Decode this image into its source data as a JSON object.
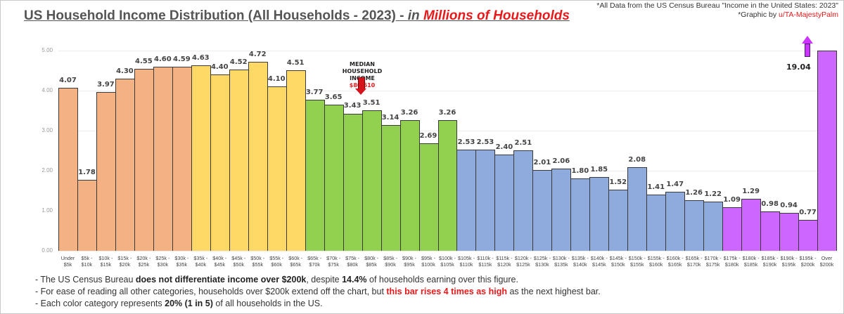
{
  "header": {
    "title_main": "US Household Income Distribution (All Households - 2023) - ",
    "title_in": "in ",
    "title_red": "Millions of Households",
    "credit_line1": "*All Data from the US Census Bureau \"Income in the United States: 2023\"",
    "credit_line2_prefix": "*Graphic by ",
    "credit_user": "u/TA-MajestyPalm"
  },
  "annotations": {
    "median_label_1": "MEDIAN",
    "median_label_2": "HOUSEHOLD",
    "median_label_3": "INCOME",
    "median_value": "$80,610",
    "over_200k_value": "19.04"
  },
  "notes": {
    "line1_a": "- The US Census Bureau ",
    "line1_b": "does not differentiate income over $200k",
    "line1_c": ", despite ",
    "line1_d": "14.4%",
    "line1_e": " of households earning over this figure.",
    "line2_a": "- For ease of reading all other categories, households over $200k extend off the chart, but ",
    "line2_b": "this bar rises 4 times as high",
    "line2_c": " as the next highest bar.",
    "line3_a": "- Each color category represents ",
    "line3_b": "20% (1 in 5)",
    "line3_c": " of all households in the US."
  },
  "colors": {
    "q1": "#f4b183",
    "q2": "#ffd966",
    "q3": "#92d050",
    "q4": "#8faadc",
    "q5": "#cc66ff",
    "accent_red": "#e8191b"
  },
  "chart_data": {
    "type": "bar",
    "title": "US Household Income Distribution (All Households - 2023) - in Millions of Households",
    "xlabel": "",
    "ylabel": "Millions of Households",
    "ylim": [
      0,
      5
    ],
    "yticks": [
      "0.00",
      "1.00",
      "2.00",
      "3.00",
      "4.00",
      "5.00"
    ],
    "grid": true,
    "legend": "none",
    "categories": [
      [
        "Under",
        "$5k"
      ],
      [
        "$5k -",
        "$10k"
      ],
      [
        "$10k -",
        "$15k"
      ],
      [
        "$15k -",
        "$20k"
      ],
      [
        "$20k -",
        "$25k"
      ],
      [
        "$25k -",
        "$30k"
      ],
      [
        "$30k -",
        "$35k"
      ],
      [
        "$35k -",
        "$40k"
      ],
      [
        "$40k -",
        "$45k"
      ],
      [
        "$45k -",
        "$50k"
      ],
      [
        "$50k -",
        "$55k"
      ],
      [
        "$55k -",
        "$60k"
      ],
      [
        "$60k -",
        "$65k"
      ],
      [
        "$65k -",
        "$70k"
      ],
      [
        "$70k -",
        "$75k"
      ],
      [
        "$75k -",
        "$80k"
      ],
      [
        "$80k -",
        "$85k"
      ],
      [
        "$85k -",
        "$90k"
      ],
      [
        "$90k -",
        "$95k"
      ],
      [
        "$95k -",
        "$100k"
      ],
      [
        "$100k -",
        "$105k"
      ],
      [
        "$105k -",
        "$110k"
      ],
      [
        "$110k -",
        "$115k"
      ],
      [
        "$115k -",
        "$120k"
      ],
      [
        "$120k -",
        "$125k"
      ],
      [
        "$125k -",
        "$130k"
      ],
      [
        "$130k -",
        "$135k"
      ],
      [
        "$135k -",
        "$140k"
      ],
      [
        "$140k -",
        "$145k"
      ],
      [
        "$145k -",
        "$150k"
      ],
      [
        "$150k -",
        "$155k"
      ],
      [
        "$155k -",
        "$160k"
      ],
      [
        "$160k -",
        "$165k"
      ],
      [
        "$165k -",
        "$170k"
      ],
      [
        "$170k -",
        "$175k"
      ],
      [
        "$175k -",
        "$180k"
      ],
      [
        "$180k -",
        "$185k"
      ],
      [
        "$185k -",
        "$190k"
      ],
      [
        "$190k -",
        "$195k"
      ],
      [
        "$195k -",
        "$200k"
      ],
      [
        "Over",
        "$200k"
      ]
    ],
    "values": [
      4.07,
      1.78,
      3.97,
      4.3,
      4.55,
      4.6,
      4.59,
      4.63,
      4.4,
      4.52,
      4.72,
      4.1,
      4.51,
      3.77,
      3.65,
      3.43,
      3.51,
      3.14,
      3.26,
      2.69,
      3.26,
      2.53,
      2.53,
      2.4,
      2.51,
      2.01,
      2.06,
      1.8,
      1.85,
      1.52,
      2.08,
      1.41,
      1.47,
      1.26,
      1.22,
      1.09,
      1.29,
      0.98,
      0.94,
      0.77,
      19.04
    ],
    "quintile": [
      1,
      1,
      1,
      1,
      1,
      1,
      1,
      2,
      2,
      2,
      2,
      2,
      2,
      3,
      3,
      3,
      3,
      3,
      3,
      3,
      3,
      4,
      4,
      4,
      4,
      4,
      4,
      4,
      4,
      4,
      4,
      4,
      4,
      4,
      4,
      5,
      5,
      5,
      5,
      5,
      5
    ],
    "annotations": [
      {
        "text": "MEDIAN HOUSEHOLD INCOME $80,610",
        "at": "$80k - $85k"
      },
      {
        "text": "19.04 (bar extends off chart)",
        "at": "Over $200k"
      }
    ]
  }
}
